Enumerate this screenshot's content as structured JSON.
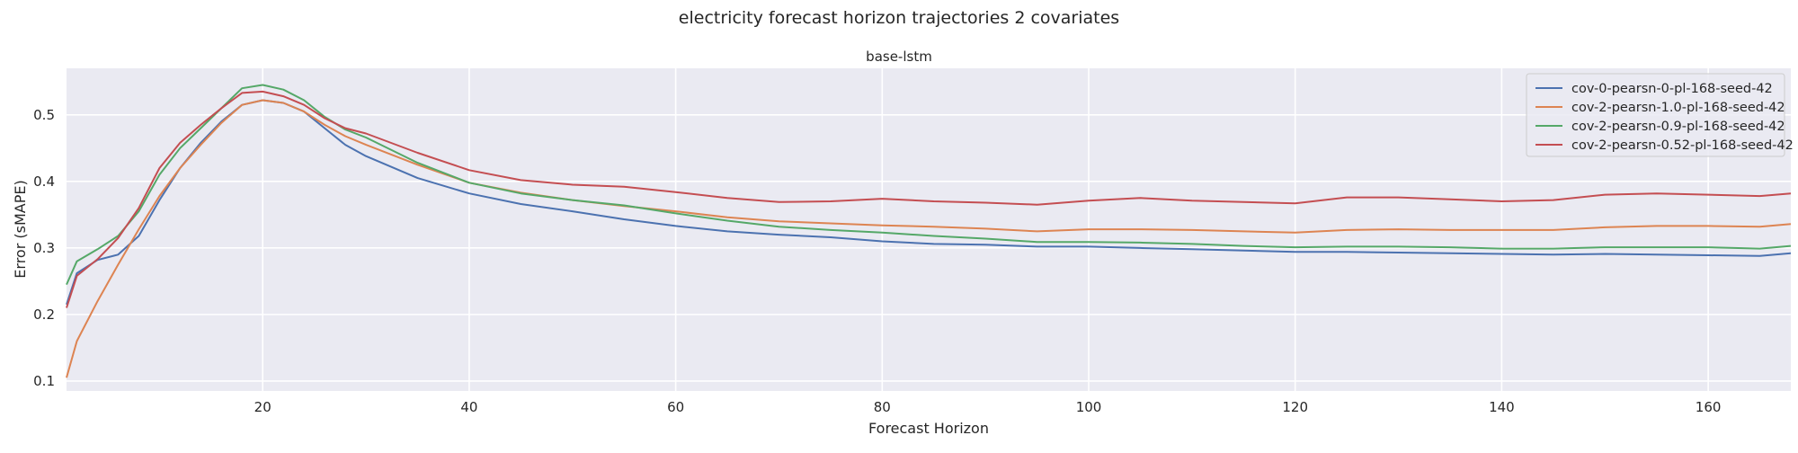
{
  "chart_data": {
    "type": "line",
    "suptitle": "electricity forecast horizon trajectories 2 covariates",
    "title": "base-lstm",
    "xlabel": "Forecast Horizon",
    "ylabel": "Error (sMAPE)",
    "xlim": [
      1,
      168
    ],
    "ylim": [
      0.085,
      0.57
    ],
    "xticks": [
      20,
      40,
      60,
      80,
      100,
      120,
      140,
      160
    ],
    "yticks": [
      0.1,
      0.2,
      0.3,
      0.4,
      0.5
    ],
    "grid": true,
    "legend_position": "top-right",
    "x": [
      1,
      2,
      4,
      6,
      8,
      10,
      12,
      14,
      16,
      18,
      20,
      22,
      24,
      26,
      28,
      30,
      35,
      40,
      45,
      50,
      55,
      60,
      65,
      70,
      75,
      80,
      85,
      90,
      95,
      100,
      105,
      110,
      115,
      120,
      125,
      130,
      135,
      140,
      145,
      150,
      155,
      160,
      165,
      168
    ],
    "series": [
      {
        "name": "cov-0-pearsn-0-pl-168-seed-42",
        "color": "#4c72b0",
        "values": [
          0.215,
          0.262,
          0.282,
          0.29,
          0.318,
          0.372,
          0.42,
          0.458,
          0.49,
          0.515,
          0.522,
          0.518,
          0.505,
          0.48,
          0.455,
          0.438,
          0.405,
          0.382,
          0.366,
          0.355,
          0.343,
          0.333,
          0.325,
          0.32,
          0.316,
          0.31,
          0.306,
          0.305,
          0.302,
          0.302,
          0.3,
          0.298,
          0.296,
          0.294,
          0.294,
          0.293,
          0.292,
          0.291,
          0.29,
          0.291,
          0.29,
          0.289,
          0.288,
          0.292
        ]
      },
      {
        "name": "cov-2-pearsn-1.0-pl-168-seed-42",
        "color": "#dd8452",
        "values": [
          0.105,
          0.16,
          0.22,
          0.275,
          0.328,
          0.378,
          0.42,
          0.455,
          0.488,
          0.515,
          0.522,
          0.518,
          0.505,
          0.485,
          0.468,
          0.455,
          0.425,
          0.398,
          0.383,
          0.372,
          0.363,
          0.355,
          0.346,
          0.34,
          0.337,
          0.334,
          0.332,
          0.329,
          0.325,
          0.328,
          0.328,
          0.327,
          0.325,
          0.323,
          0.327,
          0.328,
          0.327,
          0.327,
          0.327,
          0.331,
          0.333,
          0.333,
          0.332,
          0.336
        ]
      },
      {
        "name": "cov-2-pearsn-0.9-pl-168-seed-42",
        "color": "#55a868",
        "values": [
          0.245,
          0.28,
          0.298,
          0.318,
          0.355,
          0.41,
          0.45,
          0.48,
          0.51,
          0.54,
          0.545,
          0.538,
          0.522,
          0.497,
          0.478,
          0.466,
          0.428,
          0.398,
          0.382,
          0.372,
          0.364,
          0.352,
          0.341,
          0.332,
          0.327,
          0.323,
          0.318,
          0.314,
          0.309,
          0.309,
          0.308,
          0.306,
          0.303,
          0.301,
          0.302,
          0.302,
          0.301,
          0.299,
          0.299,
          0.301,
          0.301,
          0.301,
          0.299,
          0.303
        ]
      },
      {
        "name": "cov-2-pearsn-0.52-pl-168-seed-42",
        "color": "#c44e52",
        "values": [
          0.21,
          0.258,
          0.283,
          0.315,
          0.36,
          0.42,
          0.458,
          0.485,
          0.51,
          0.533,
          0.535,
          0.528,
          0.515,
          0.495,
          0.48,
          0.472,
          0.443,
          0.417,
          0.402,
          0.395,
          0.392,
          0.384,
          0.375,
          0.369,
          0.37,
          0.374,
          0.37,
          0.368,
          0.365,
          0.371,
          0.375,
          0.371,
          0.369,
          0.367,
          0.376,
          0.376,
          0.373,
          0.37,
          0.372,
          0.38,
          0.382,
          0.38,
          0.378,
          0.382
        ]
      }
    ]
  }
}
